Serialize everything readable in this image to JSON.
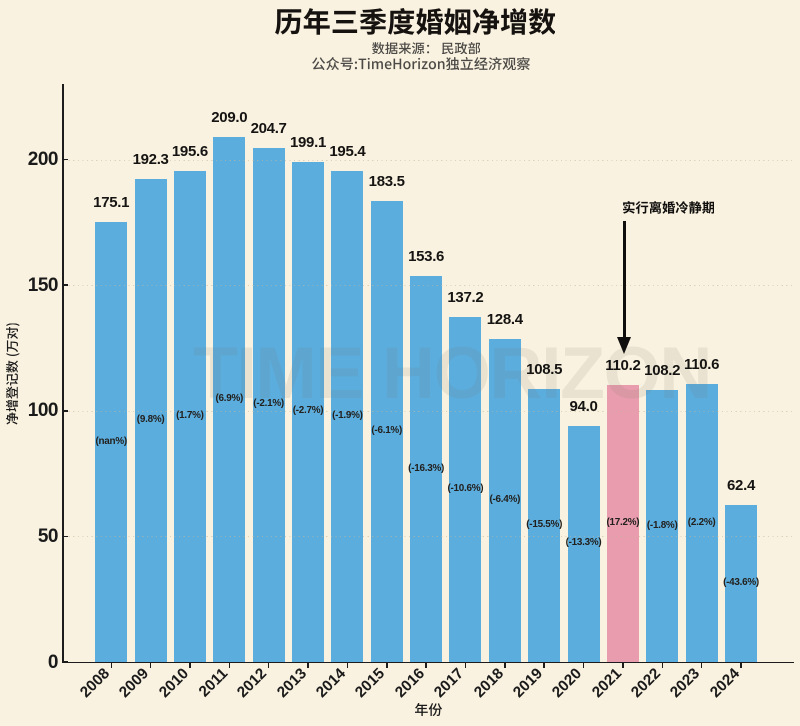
{
  "header": {
    "title": "历年三季度婚姻净增数",
    "subtitle_source": "数据来源： 民政部",
    "subtitle_account": "公众号:TimeHorizon独立经济观察"
  },
  "watermark": "TIME HORIZON",
  "annotation": {
    "text": "实行离婚冷静期",
    "points_to_year": "2021"
  },
  "chart_data": {
    "type": "bar",
    "title": "历年三季度婚姻净增数",
    "xlabel": "年份",
    "ylabel": "净增登记数 (万对)",
    "categories": [
      "2008",
      "2009",
      "2010",
      "2011",
      "2012",
      "2013",
      "2014",
      "2015",
      "2016",
      "2017",
      "2018",
      "2019",
      "2020",
      "2021",
      "2022",
      "2023",
      "2024"
    ],
    "values": [
      175.1,
      192.3,
      195.6,
      209.0,
      204.7,
      199.1,
      195.4,
      183.5,
      153.6,
      137.2,
      128.4,
      108.5,
      94.0,
      110.2,
      108.2,
      110.6,
      62.4
    ],
    "bar_labels": [
      "175.1",
      "192.3",
      "195.6",
      "209.0",
      "204.7",
      "199.1",
      "195.4",
      "183.5",
      "153.6",
      "137.2",
      "128.4",
      "108.5",
      "94.0",
      "110.2",
      "108.2",
      "110.6",
      "62.4"
    ],
    "pct_labels": [
      "(nan%)",
      "(9.8%)",
      "(1.7%)",
      "(6.9%)",
      "(-2.1%)",
      "(-2.7%)",
      "(-1.9%)",
      "(-6.1%)",
      "(-16.3%)",
      "(-10.6%)",
      "(-6.4%)",
      "(-15.5%)",
      "(-13.3%)",
      "(17.2%)",
      "(-1.8%)",
      "(2.2%)",
      "(-43.6%)"
    ],
    "yticks": [
      "0",
      "50",
      "100",
      "150",
      "200"
    ],
    "ytick_values": [
      0,
      50,
      100,
      150,
      200
    ],
    "ylim": [
      0,
      230
    ],
    "grid": "horizontal-dashed",
    "legend": null,
    "highlight_index": 13,
    "colors": {
      "background": "#faf2e0",
      "bar": "#5badde",
      "bar_highlight": "#e89cae",
      "text": "#151412",
      "subtitle": "#4c4a47",
      "grid": "#cfc5ad"
    }
  }
}
